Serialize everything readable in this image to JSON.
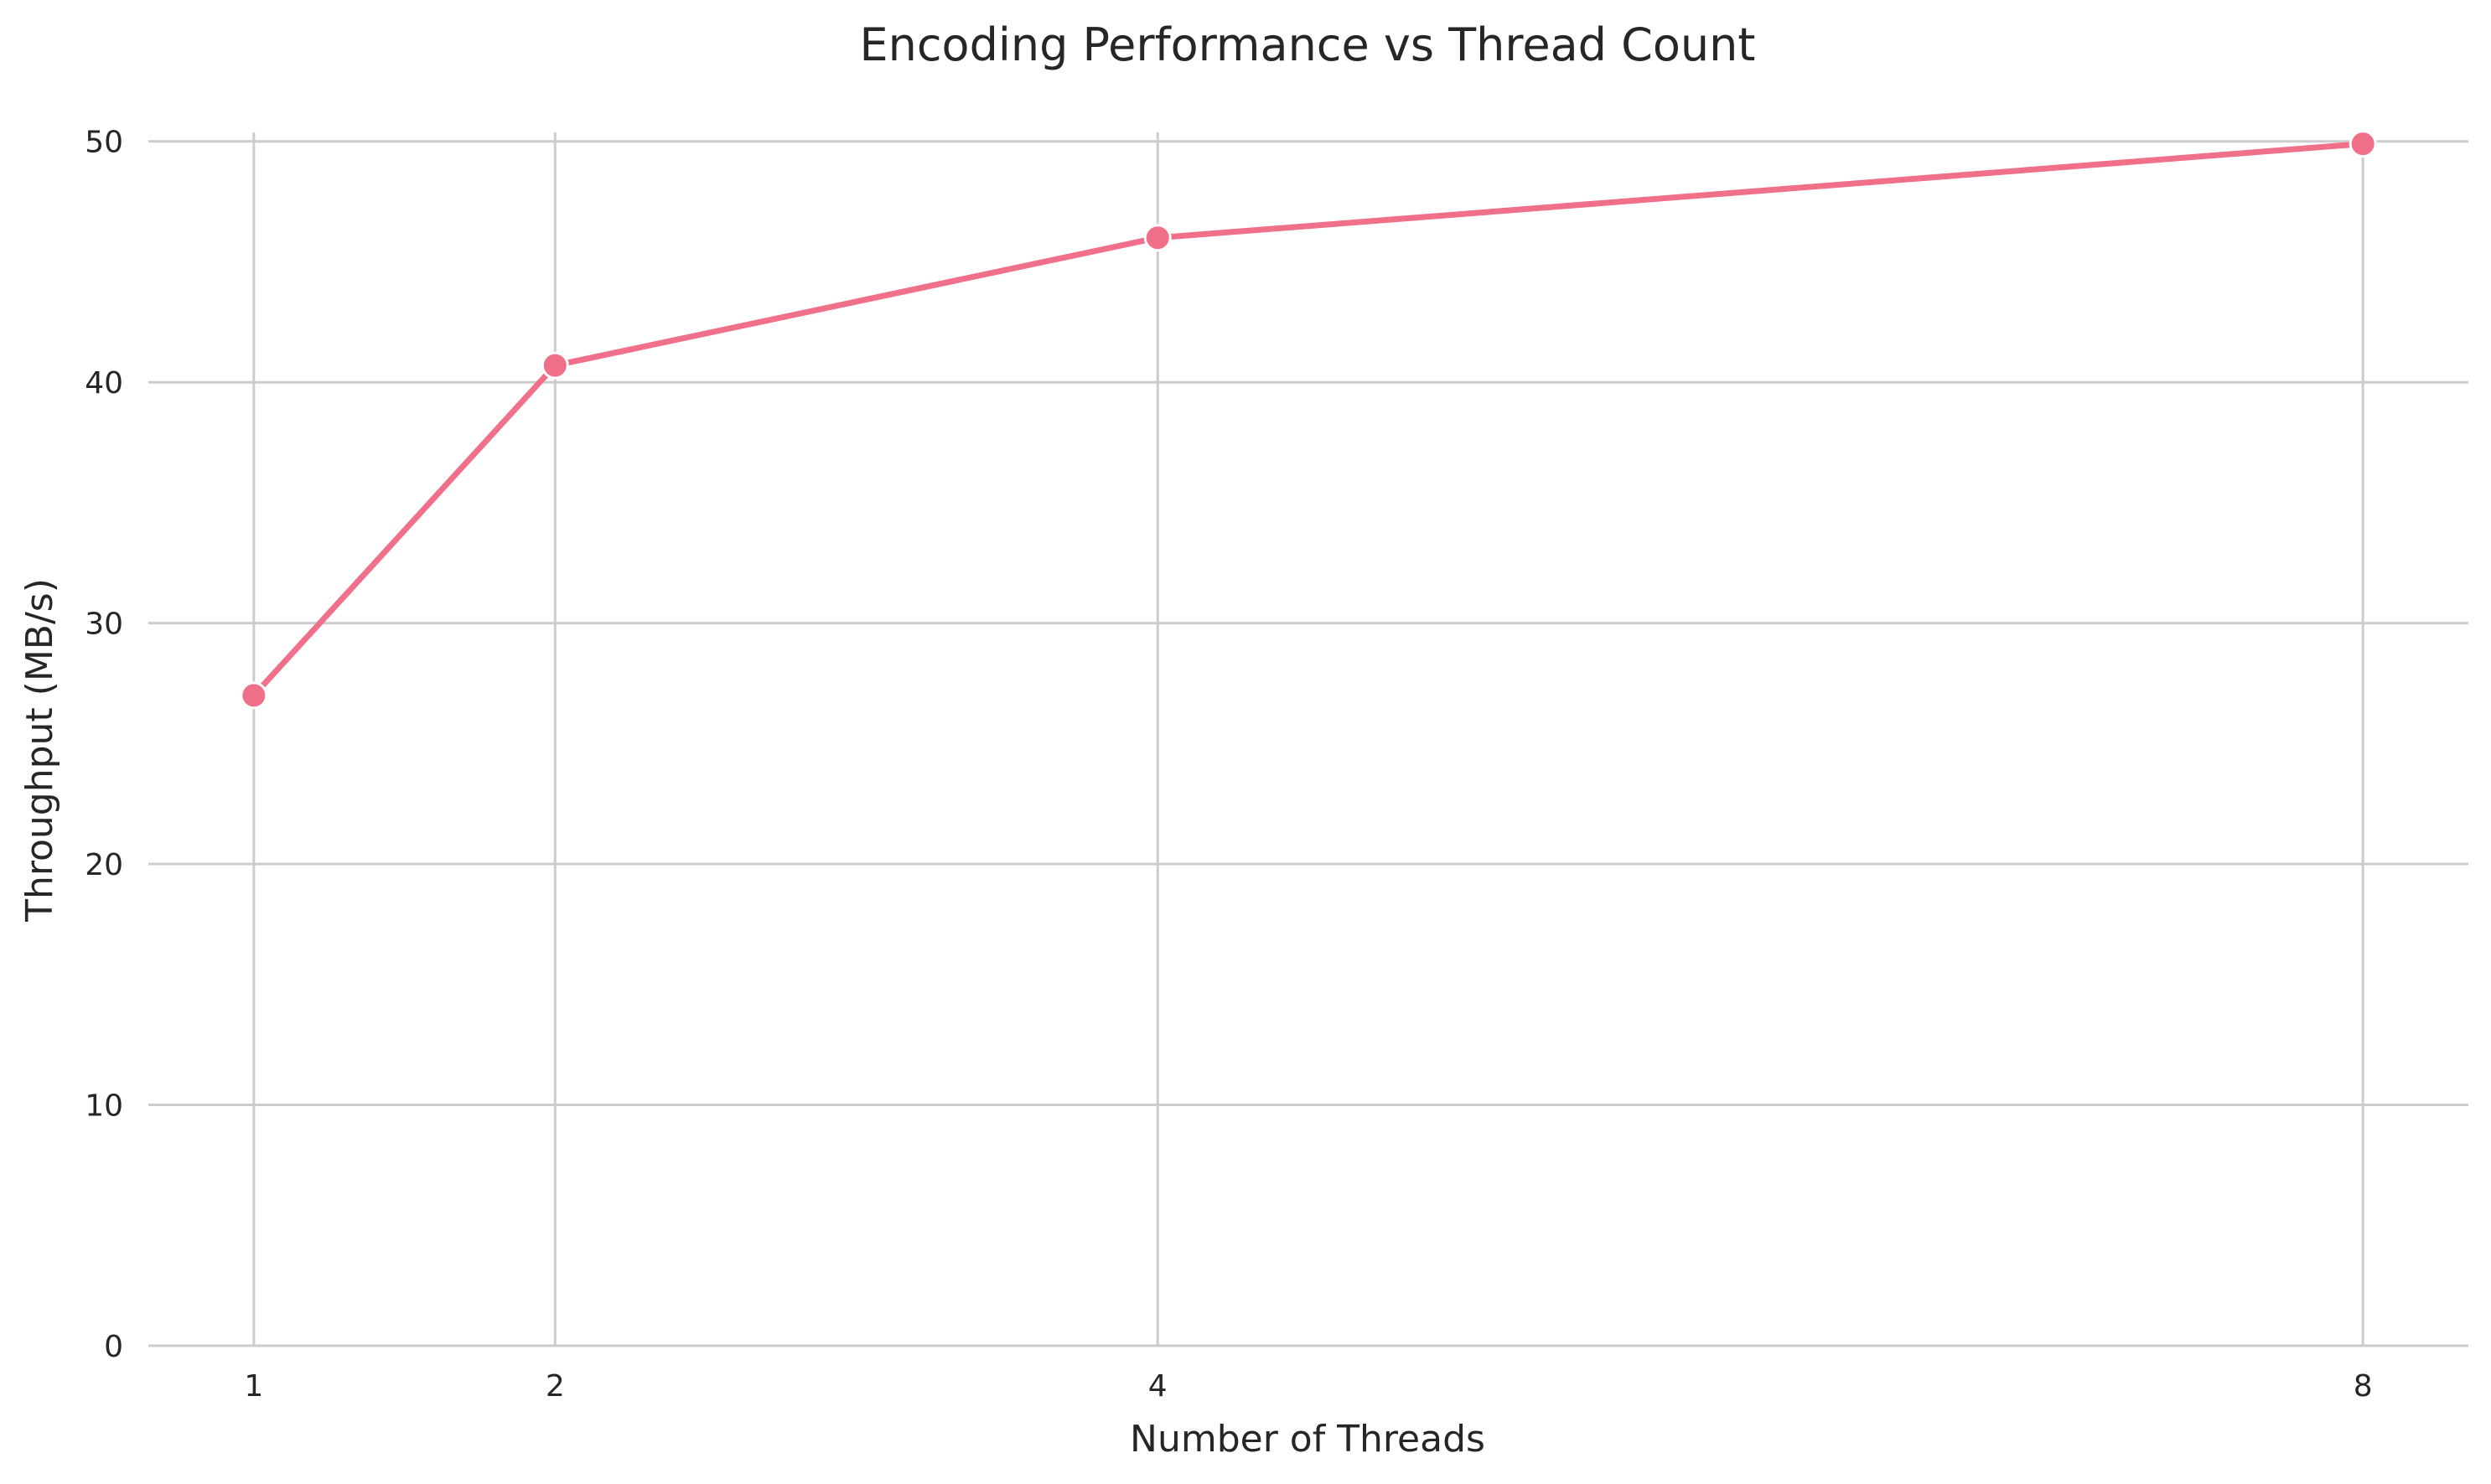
{
  "chart_data": {
    "type": "line",
    "title": "Encoding Performance vs Thread Count",
    "xlabel": "Number of Threads",
    "ylabel": "Throughput (MB/s)",
    "x": [
      1,
      2,
      4,
      8
    ],
    "x_ticks": [
      "1",
      "2",
      "4",
      "8"
    ],
    "y_ticks": [
      "0",
      "10",
      "20",
      "30",
      "40",
      "50"
    ],
    "ylim": [
      0,
      51
    ],
    "xlim": [
      0.65,
      8.35
    ],
    "grid": true,
    "series": [
      {
        "values": [
          27.0,
          40.7,
          46.0,
          49.9
        ],
        "color": "#f0708a"
      }
    ]
  }
}
